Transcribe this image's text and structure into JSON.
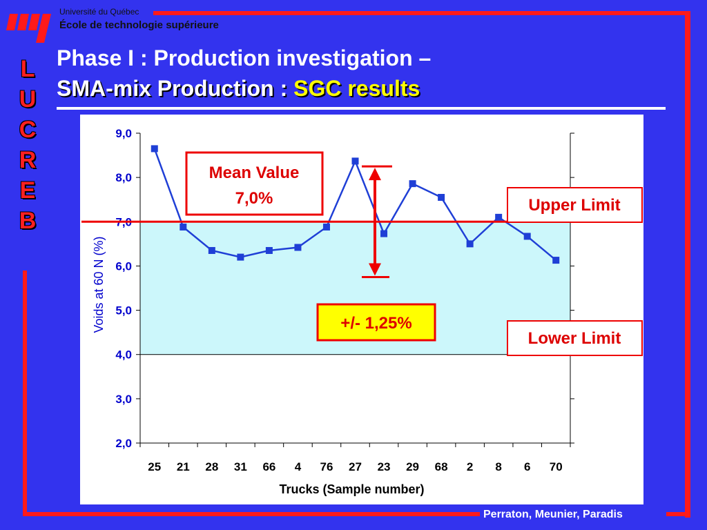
{
  "header": {
    "university": "Université du Québec",
    "school": "École de technologie supérieure",
    "side_letters": [
      "L",
      "U",
      "C",
      "R",
      "E",
      "B"
    ]
  },
  "title": {
    "line1": "Phase I : Production investigation –",
    "line2_a": "SMA-mix Production :",
    "line2_b": "SGC results"
  },
  "footer": {
    "authors": "Perraton, Meunier, Paradis"
  },
  "colors": {
    "background": "#3333ee",
    "frame": "#ff1a1a",
    "series": "#1f3fd6",
    "band": "#ccf7fb",
    "limit_line": "#ee0000",
    "highlight_box": "#ffff00"
  },
  "annotations": {
    "mean_value_line1": "Mean Value",
    "mean_value_line2": "7,0%",
    "upper_limit": "Upper Limit",
    "lower_limit": "Lower Limit",
    "tolerance": "+/- 1,25%"
  },
  "chart_data": {
    "type": "line",
    "xlabel": "Trucks (Sample number)",
    "ylabel": "Voids at 60 N (%)",
    "ylim": [
      2.0,
      9.0
    ],
    "yticks": [
      "2,0",
      "3,0",
      "4,0",
      "5,0",
      "6,0",
      "7,0",
      "8,0",
      "9,0"
    ],
    "categories": [
      "25",
      "21",
      "28",
      "31",
      "66",
      "4",
      "76",
      "27",
      "23",
      "29",
      "68",
      "2",
      "8",
      "6",
      "70"
    ],
    "series": [
      {
        "values": [
          8.65,
          6.88,
          6.35,
          6.2,
          6.35,
          6.42,
          6.88,
          8.37,
          6.73,
          7.86,
          7.55,
          6.5,
          7.1,
          6.67,
          6.13
        ]
      }
    ],
    "mean_value": 7.0,
    "band": [
      4.0,
      7.0
    ],
    "tolerance_arrow": [
      5.75,
      8.25
    ],
    "grid": false
  }
}
